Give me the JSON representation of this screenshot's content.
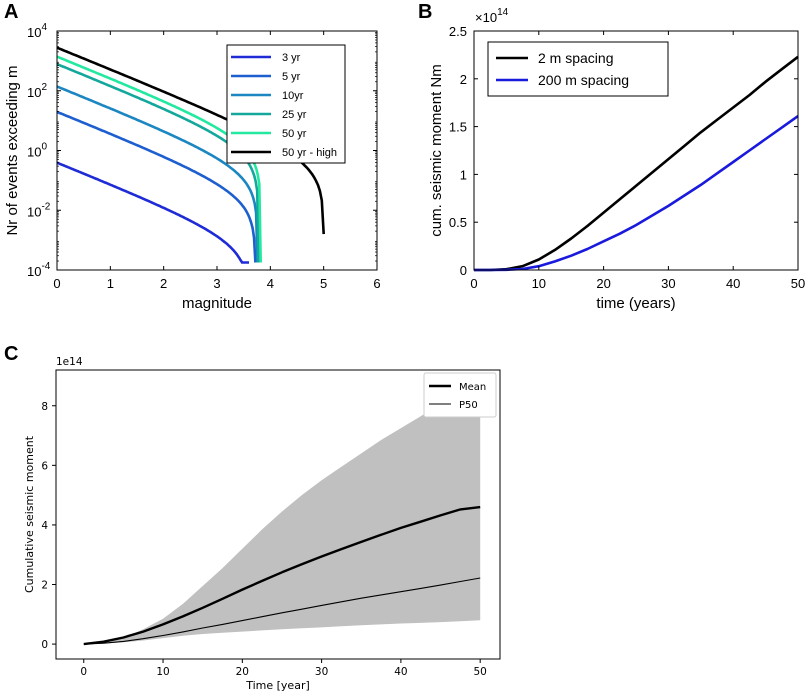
{
  "chart_data": [
    {
      "panel": "A",
      "type": "line",
      "xlabel": "magnitude",
      "ylabel": "Nr of events exceeding m",
      "xlim": [
        0,
        6
      ],
      "ylim_log10": [
        -4,
        4
      ],
      "y_scale": "log",
      "xticks": [
        "0",
        "1",
        "2",
        "3",
        "4",
        "5",
        "6"
      ],
      "yticks": [
        {
          "base": "10",
          "exp": "-4"
        },
        {
          "base": "10",
          "exp": "-2"
        },
        {
          "base": "10",
          "exp": "0"
        },
        {
          "base": "10",
          "exp": "2"
        },
        {
          "base": "10",
          "exp": "4"
        }
      ],
      "legend_position": "top-right",
      "series": [
        {
          "name": "3 yr",
          "color": "#1f2bd6",
          "n0_log10": -0.4,
          "mmax": 3.6
        },
        {
          "name": "5 yr",
          "color": "#1e5fd0",
          "n0_log10": 1.3,
          "mmax": 3.72
        },
        {
          "name": "10yr",
          "color": "#1b86c2",
          "n0_log10": 2.15,
          "mmax": 3.76
        },
        {
          "name": "25 yr",
          "color": "#14a89c",
          "n0_log10": 2.9,
          "mmax": 3.78
        },
        {
          "name": "50 yr",
          "color": "#22e8a0",
          "n0_log10": 3.15,
          "mmax": 3.82
        },
        {
          "name": "50 yr - high",
          "color": "#000000",
          "n0_log10": 3.45,
          "mmax": 5.0
        }
      ]
    },
    {
      "panel": "B",
      "type": "line",
      "xlabel": "time (years)",
      "ylabel": "cum. seismic moment Nm",
      "xlim": [
        0,
        50
      ],
      "ylim": [
        0,
        2.5
      ],
      "y_multiplier": {
        "base": "×10",
        "exp": "14"
      },
      "xticks": [
        "0",
        "10",
        "20",
        "30",
        "40",
        "50"
      ],
      "yticks": [
        "0",
        "0.5",
        "1",
        "1.5",
        "2",
        "2.5"
      ],
      "legend_position": "top-left",
      "x": [
        0,
        2.5,
        5,
        7.5,
        10,
        12.5,
        15,
        17.5,
        20,
        22.5,
        25,
        27.5,
        30,
        32.5,
        35,
        37.5,
        40,
        42.5,
        45,
        47.5,
        50
      ],
      "series": [
        {
          "name": "2 m spacing",
          "color": "#000000",
          "values": [
            0,
            0,
            0.008,
            0.04,
            0.11,
            0.21,
            0.33,
            0.46,
            0.6,
            0.74,
            0.88,
            1.02,
            1.16,
            1.3,
            1.44,
            1.57,
            1.7,
            1.83,
            1.97,
            2.1,
            2.23
          ]
        },
        {
          "name": "200 m spacing",
          "color": "#1a1adc",
          "values": [
            0,
            0,
            0.002,
            0.01,
            0.04,
            0.09,
            0.15,
            0.22,
            0.3,
            0.38,
            0.47,
            0.57,
            0.67,
            0.78,
            0.89,
            1.01,
            1.13,
            1.25,
            1.37,
            1.49,
            1.61
          ]
        }
      ]
    },
    {
      "panel": "C",
      "type": "area",
      "xlabel": "Time [year]",
      "ylabel": "Cumulative seismic moment",
      "offset_text": "1e14",
      "xlim": [
        -3.5,
        52.5
      ],
      "ylim": [
        -0.5,
        9.2
      ],
      "xticks": [
        "0",
        "10",
        "20",
        "30",
        "40",
        "50"
      ],
      "yticks": [
        "0",
        "2",
        "4",
        "6",
        "8"
      ],
      "legend_position": "top-right",
      "x": [
        0,
        2.5,
        5,
        7.5,
        10,
        12.5,
        15,
        17.5,
        20,
        22.5,
        25,
        27.5,
        30,
        32.5,
        35,
        37.5,
        40,
        42.5,
        45,
        47.5,
        50
      ],
      "band": {
        "color": "#c0c0c0",
        "upper": [
          0,
          0.05,
          0.2,
          0.5,
          0.85,
          1.35,
          1.95,
          2.55,
          3.2,
          3.85,
          4.45,
          5.0,
          5.5,
          5.95,
          6.4,
          6.85,
          7.25,
          7.65,
          8.05,
          8.45,
          8.9
        ],
        "lower": [
          0,
          0.02,
          0.06,
          0.12,
          0.2,
          0.28,
          0.34,
          0.38,
          0.42,
          0.46,
          0.5,
          0.53,
          0.56,
          0.6,
          0.63,
          0.66,
          0.69,
          0.71,
          0.74,
          0.77,
          0.8
        ]
      },
      "series": [
        {
          "name": "Mean",
          "color": "#000000",
          "style": "thick",
          "values": [
            0,
            0.08,
            0.22,
            0.42,
            0.66,
            0.93,
            1.22,
            1.52,
            1.83,
            2.12,
            2.41,
            2.68,
            2.94,
            3.19,
            3.43,
            3.67,
            3.9,
            4.11,
            4.32,
            4.52,
            4.6
          ]
        },
        {
          "name": "P50",
          "color": "#000000",
          "style": "thin",
          "values": [
            0,
            0.03,
            0.09,
            0.18,
            0.29,
            0.41,
            0.54,
            0.66,
            0.79,
            0.92,
            1.05,
            1.17,
            1.3,
            1.42,
            1.54,
            1.65,
            1.76,
            1.87,
            1.98,
            2.1,
            2.22
          ]
        }
      ]
    }
  ],
  "panels": {
    "a_letter": "A",
    "b_letter": "B",
    "c_letter": "C"
  }
}
